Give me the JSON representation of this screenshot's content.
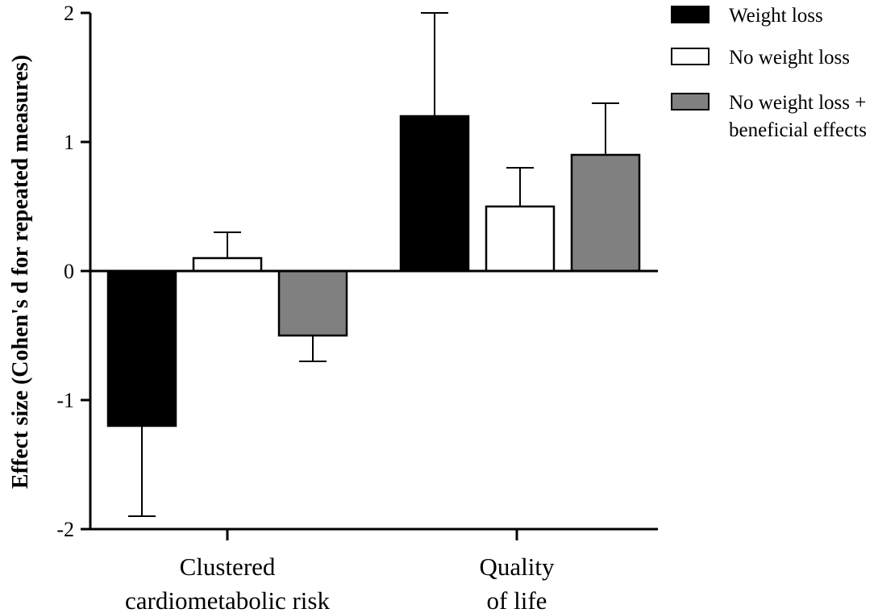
{
  "chart_data": {
    "type": "bar",
    "title": "",
    "xlabel": "",
    "ylabel": "Effect size (Cohen's d for repeated measures)",
    "ylim": [
      -2,
      2
    ],
    "yticks": [
      "2",
      "1",
      "0",
      "-1",
      "-2"
    ],
    "categories": [
      [
        "Clustered",
        "cardiometabolic risk"
      ],
      [
        "Quality",
        "of life"
      ]
    ],
    "series": [
      {
        "name": [
          "Weight loss"
        ],
        "color": "#000000",
        "values": [
          -1.2,
          1.2
        ],
        "errors": [
          0.7,
          0.8
        ]
      },
      {
        "name": [
          "No weight loss"
        ],
        "color": "#ffffff",
        "values": [
          0.1,
          0.5
        ],
        "errors": [
          0.2,
          0.3
        ]
      },
      {
        "name": [
          "No weight loss +",
          "beneficial effects"
        ],
        "color": "#808080",
        "values": [
          -0.5,
          0.9
        ],
        "errors": [
          0.2,
          0.4
        ]
      }
    ],
    "legend_position": "top-right",
    "grid": false
  }
}
